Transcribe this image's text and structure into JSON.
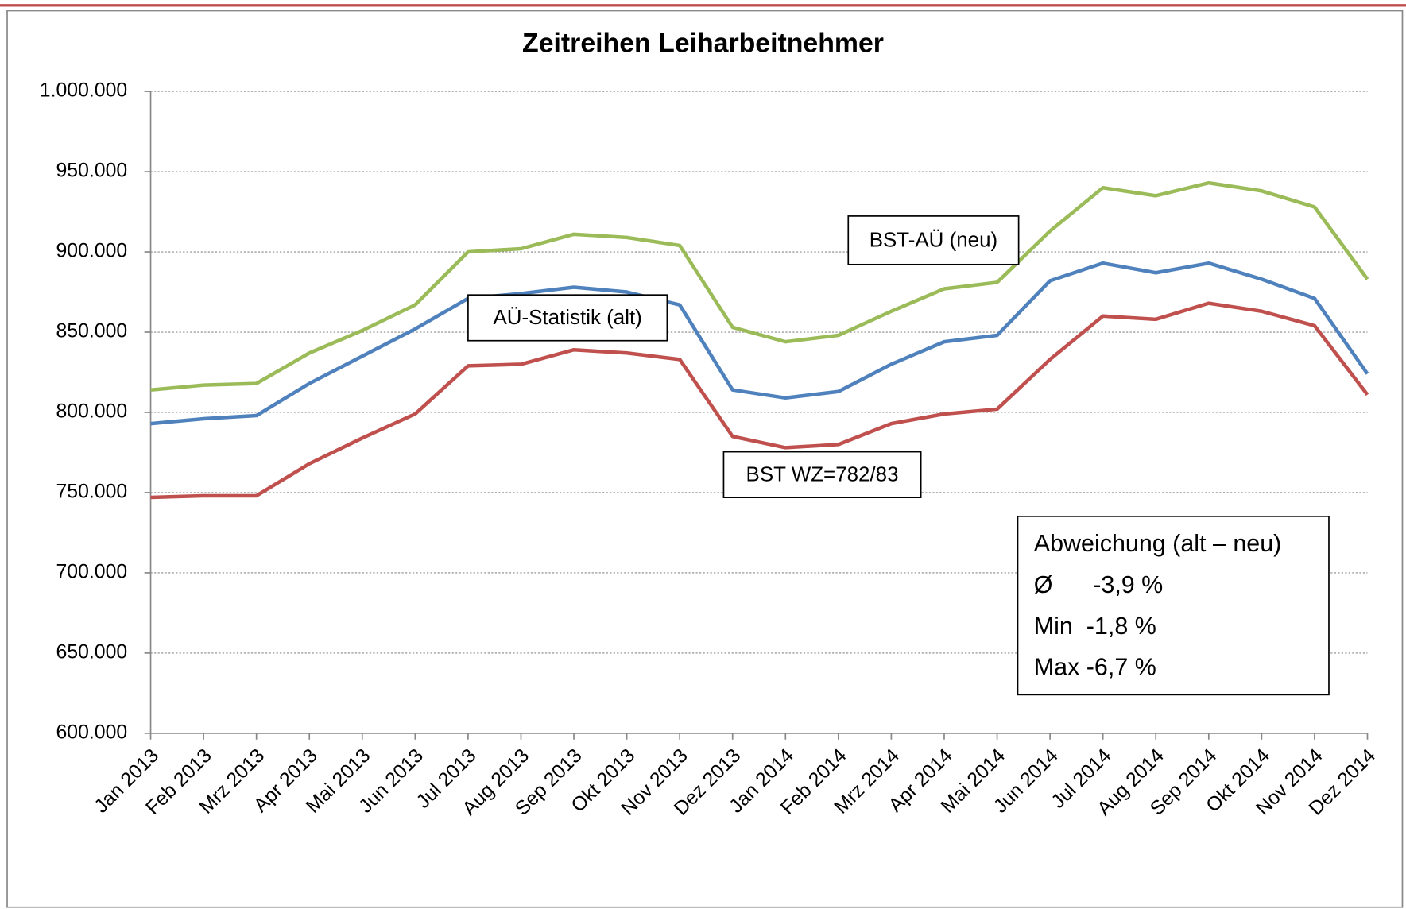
{
  "chart_data": {
    "type": "line",
    "title": "Zeitreihen Leiharbeitnehmer",
    "categories": [
      "Jan 2013",
      "Feb 2013",
      "Mrz 2013",
      "Apr 2013",
      "Mai 2013",
      "Jun 2013",
      "Jul 2013",
      "Aug 2013",
      "Sep 2013",
      "Okt 2013",
      "Nov 2013",
      "Dez 2013",
      "Jan 2014",
      "Feb 2014",
      "Mrz 2014",
      "Apr 2014",
      "Mai 2014",
      "Jun 2014",
      "Jul 2014",
      "Aug 2014",
      "Sep 2014",
      "Okt 2014",
      "Nov 2014",
      "Dez 2014"
    ],
    "series": [
      {
        "name": "BST-AÜ (neu)",
        "color": "#9bbb59",
        "values": [
          814000,
          817000,
          818000,
          837000,
          851000,
          867000,
          900000,
          902000,
          911000,
          909000,
          904000,
          853000,
          844000,
          848000,
          863000,
          877000,
          881000,
          913000,
          940000,
          935000,
          943000,
          938000,
          928000,
          883000
        ]
      },
      {
        "name": "AÜ-Statistik (alt)",
        "color": "#4f81bd",
        "values": [
          793000,
          796000,
          798000,
          818000,
          835000,
          852000,
          871000,
          874000,
          878000,
          875000,
          867000,
          814000,
          809000,
          813000,
          830000,
          844000,
          848000,
          882000,
          893000,
          887000,
          893000,
          883000,
          871000,
          824000
        ]
      },
      {
        "name": "BST WZ=782/83",
        "color": "#c0504d",
        "values": [
          747000,
          748000,
          748000,
          768000,
          784000,
          799000,
          829000,
          830000,
          839000,
          837000,
          833000,
          785000,
          778000,
          780000,
          793000,
          799000,
          802000,
          833000,
          860000,
          858000,
          868000,
          863000,
          854000,
          811000
        ]
      }
    ],
    "ylim": [
      600000,
      1000000
    ],
    "yticks": [
      {
        "value": 600000,
        "label": "600.000"
      },
      {
        "value": 650000,
        "label": "650.000"
      },
      {
        "value": 700000,
        "label": "700.000"
      },
      {
        "value": 750000,
        "label": "750.000"
      },
      {
        "value": 800000,
        "label": "800.000"
      },
      {
        "value": 850000,
        "label": "850.000"
      },
      {
        "value": 900000,
        "label": "900.000"
      },
      {
        "value": 950000,
        "label": "950.000"
      },
      {
        "value": 1000000,
        "label": "1.000.000"
      }
    ],
    "grid": true,
    "annotations": [
      "Abweichung (alt – neu)",
      "Ø      -3,9 %",
      "Min  -1,8 %",
      "Max -6,7 %"
    ]
  }
}
